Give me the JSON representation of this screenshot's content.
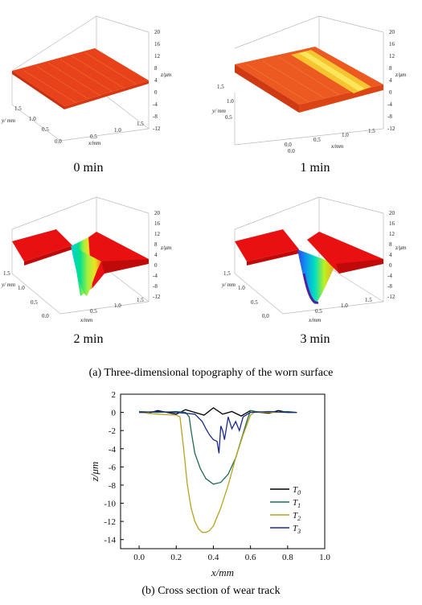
{
  "panels": [
    {
      "caption": "0 min",
      "z_label": "z/μm",
      "x_label": "x/mm",
      "y_label": "y/ mm",
      "z_ticks": [
        "20",
        "16",
        "12",
        "8",
        "4",
        "0",
        "-4",
        "-8",
        "-12"
      ],
      "x_ticks": [
        "0.5",
        "1.0",
        "1.5"
      ],
      "y_ticks": [
        "1.5",
        "1.0",
        "0.5",
        "0.0"
      ]
    },
    {
      "caption": "1 min",
      "z_label": "z/μm",
      "x_label": "x/mm",
      "y_label": "y/ mm",
      "z_ticks": [
        "20",
        "16",
        "12",
        "8",
        "4",
        "0",
        "-4",
        "-8",
        "-12"
      ],
      "x_ticks": [
        "0.0",
        "0.5",
        "1.0",
        "1.5"
      ],
      "y_ticks": [
        "1.5",
        "1.0",
        "0.5",
        "0.0"
      ]
    },
    {
      "caption": "2 min",
      "z_label": "z/μm",
      "x_label": "x/mm",
      "y_label": "y/ mm",
      "z_ticks": [
        "20",
        "16",
        "12",
        "8",
        "4",
        "0",
        "-4",
        "-8",
        "-12"
      ],
      "x_ticks": [
        "0.5",
        "1.0",
        "1.5"
      ],
      "y_ticks": [
        "1.5",
        "1.0",
        "0.5",
        "0.0"
      ]
    },
    {
      "caption": "3 min",
      "z_label": "z/μm",
      "x_label": "x/mm",
      "y_label": "y/ mm",
      "z_ticks": [
        "20",
        "16",
        "12",
        "8",
        "4",
        "0",
        "-4",
        "-8",
        "-12"
      ],
      "x_ticks": [
        "0.5",
        "1.0",
        "1.5"
      ],
      "y_ticks": [
        "1.5",
        "1.0",
        "0.5",
        "0.0"
      ]
    }
  ],
  "caption_a": "(a) Three-dimensional topography of the worn surface",
  "caption_b": "(b) Cross section of wear track",
  "chart_data": {
    "type": "line",
    "xlabel": "x/mm",
    "ylabel": "z/μm",
    "xlim": [
      -0.1,
      1.0
    ],
    "ylim": [
      -15,
      2
    ],
    "x_ticks": [
      "0.0",
      "0.2",
      "0.4",
      "0.6",
      "0.8",
      "1.0"
    ],
    "y_ticks": [
      "2",
      "0",
      "-2",
      "-4",
      "-6",
      "-8",
      "-10",
      "-12",
      "-14"
    ],
    "grid": false,
    "legend_position": "right-middle",
    "series": [
      {
        "name": "T0",
        "sub": "0",
        "color": "#000000",
        "x": [
          0.0,
          0.05,
          0.1,
          0.15,
          0.2,
          0.25,
          0.3,
          0.35,
          0.4,
          0.45,
          0.5,
          0.55,
          0.6,
          0.65,
          0.7,
          0.75,
          0.8,
          0.85
        ],
        "y": [
          0.1,
          -0.1,
          0.2,
          0.0,
          -0.2,
          0.3,
          0.0,
          -0.3,
          0.5,
          -0.2,
          0.1,
          -0.4,
          0.2,
          0.0,
          -0.1,
          0.2,
          0.0,
          0.0
        ]
      },
      {
        "name": "T1",
        "sub": "1",
        "color": "#1f6b4f",
        "x": [
          0.0,
          0.1,
          0.2,
          0.25,
          0.27,
          0.28,
          0.3,
          0.33,
          0.36,
          0.4,
          0.44,
          0.48,
          0.52,
          0.55,
          0.58,
          0.6,
          0.62,
          0.7,
          0.8,
          0.85
        ],
        "y": [
          0.1,
          0.0,
          0.1,
          0.0,
          -0.5,
          -2.0,
          -4.5,
          -6.2,
          -7.3,
          -7.9,
          -7.7,
          -6.8,
          -5.0,
          -3.0,
          -1.0,
          0.2,
          0.1,
          0.0,
          0.1,
          0.0
        ],
        "unnamed": false
      },
      {
        "name": "T2",
        "sub": "2",
        "color": "#b5a51e",
        "x": [
          0.0,
          0.1,
          0.2,
          0.22,
          0.24,
          0.26,
          0.28,
          0.3,
          0.32,
          0.34,
          0.36,
          0.38,
          0.4,
          0.44,
          0.48,
          0.52,
          0.56,
          0.6,
          0.62,
          0.7,
          0.8,
          0.85
        ],
        "y": [
          0.0,
          -0.2,
          -0.3,
          -0.5,
          -4.0,
          -8.0,
          -10.5,
          -12.0,
          -12.8,
          -13.2,
          -13.2,
          -13.0,
          -12.5,
          -10.5,
          -8.0,
          -5.0,
          -2.5,
          -0.3,
          0.0,
          0.0,
          0.0,
          0.0
        ]
      },
      {
        "name": "T3",
        "sub": "3",
        "color": "#1a2a8c",
        "x": [
          0.0,
          0.1,
          0.2,
          0.3,
          0.34,
          0.36,
          0.38,
          0.4,
          0.42,
          0.43,
          0.44,
          0.45,
          0.46,
          0.48,
          0.5,
          0.52,
          0.54,
          0.56,
          0.6,
          0.7,
          0.8,
          0.85
        ],
        "y": [
          0.0,
          0.1,
          0.0,
          -0.2,
          -1.0,
          -1.8,
          -2.5,
          -3.0,
          -3.2,
          -4.5,
          -1.5,
          -2.0,
          -3.0,
          -0.5,
          -1.8,
          -1.0,
          -2.0,
          -0.5,
          0.0,
          0.1,
          0.0,
          0.0
        ]
      }
    ]
  }
}
